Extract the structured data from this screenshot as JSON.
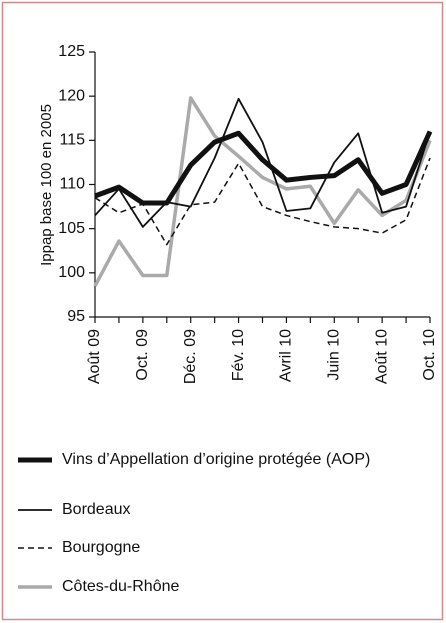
{
  "chart_data": {
    "type": "line",
    "y_label": "Ippap base 100 en 2005",
    "categories": [
      "Août 09",
      null,
      "Oct. 09",
      null,
      "Déc. 09",
      null,
      "Fév. 10",
      null,
      "Avril 10",
      null,
      "Juin 10",
      null,
      "Août 10",
      null,
      "Oct. 10"
    ],
    "series": [
      {
        "name": "Vins d’Appellation d’origine protégée (AOP)",
        "color": "#111111",
        "line_width": 5,
        "dash": false,
        "values": [
          108.7,
          109.7,
          107.9,
          107.9,
          112.2,
          114.8,
          115.8,
          112.8,
          110.5,
          110.8,
          111,
          112.8,
          109,
          110,
          116
        ]
      },
      {
        "name": "Bordeaux",
        "color": "#111111",
        "line_width": 1.8,
        "dash": false,
        "values": [
          106.5,
          109.5,
          105.2,
          108,
          107.5,
          113,
          119.7,
          114.8,
          107,
          107.3,
          112.5,
          115.8,
          106.8,
          107.5,
          116
        ]
      },
      {
        "name": "Bourgogne",
        "color": "#111111",
        "line_width": 1.5,
        "dash": true,
        "values": [
          108.5,
          106.8,
          107.8,
          103.2,
          107.7,
          108,
          112.4,
          107.5,
          106.5,
          105.8,
          105.2,
          105,
          104.5,
          106,
          113
        ]
      },
      {
        "name": "Côtes-du-Rhône",
        "color": "#aaaaaa",
        "line_width": 3.5,
        "dash": false,
        "values": [
          98.5,
          103.6,
          99.7,
          99.7,
          119.8,
          115.5,
          113.2,
          110.8,
          109.5,
          109.8,
          105.6,
          109.4,
          106.5,
          108.2,
          115
        ]
      }
    ],
    "ylim": [
      95,
      125
    ],
    "yticks": [
      95,
      100,
      105,
      110,
      115,
      120,
      125
    ]
  }
}
